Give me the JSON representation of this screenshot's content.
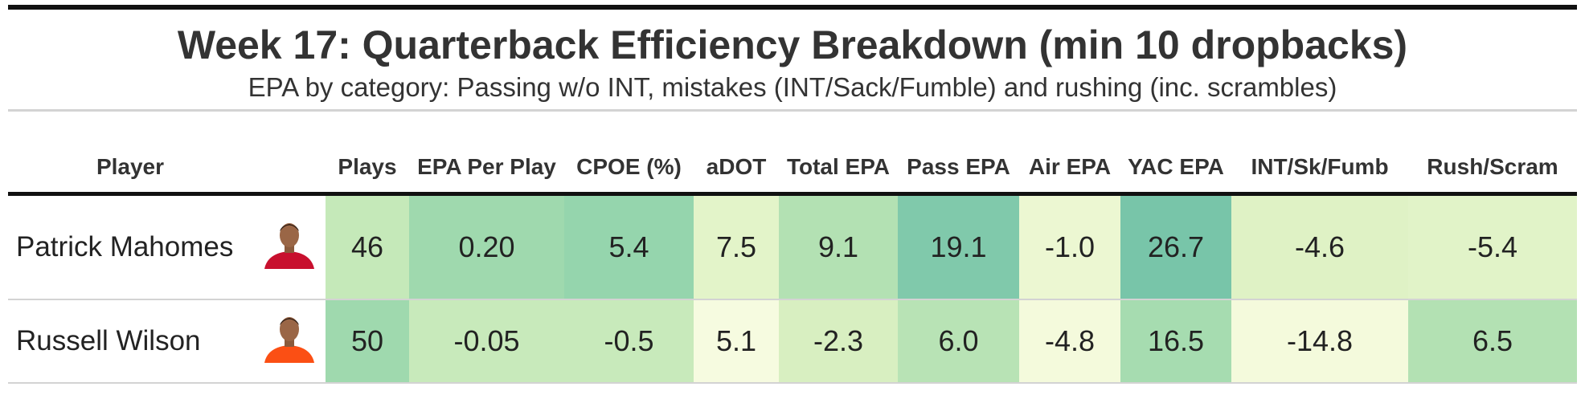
{
  "title": "Week 17: Quarterback Efficiency Breakdown (min 10 dropbacks)",
  "subtitle": "EPA by category: Passing w/o INT, mistakes (INT/Sack/Fumble) and rushing (inc. scrambles)",
  "table": {
    "player_header": "Player",
    "columns": [
      "Plays",
      "EPA Per Play",
      "CPOE (%)",
      "aDOT",
      "Total EPA",
      "Pass EPA",
      "Air EPA",
      "YAC EPA",
      "INT/Sk/Fumb",
      "Rush/Scram"
    ],
    "rows": [
      {
        "player": "Patrick Mahomes",
        "team_color": "#c8102e",
        "cells": [
          "46",
          "0.20",
          "5.4",
          "7.5",
          "9.1",
          "19.1",
          "-1.0",
          "26.7",
          "-4.6",
          "-5.4"
        ],
        "colors": [
          "#c5e9b9",
          "#9fd9ae",
          "#95d5ad",
          "#e3f4c9",
          "#b3e1b3",
          "#80c9ab",
          "#ecf7d2",
          "#78c5a9",
          "#dff2c5",
          "#e1f3c8"
        ]
      },
      {
        "player": "Russell Wilson",
        "team_color": "#fb4f14",
        "cells": [
          "50",
          "-0.05",
          "-0.5",
          "5.1",
          "-2.3",
          "6.0",
          "-4.8",
          "16.5",
          "-14.8",
          "6.5"
        ],
        "colors": [
          "#9fd9ae",
          "#c8eabb",
          "#c8eabb",
          "#f6fbe0",
          "#d8efc1",
          "#b8e3b5",
          "#f4fadc",
          "#a6dcb0",
          "#f4fadc",
          "#b3e1b3"
        ]
      }
    ]
  }
}
